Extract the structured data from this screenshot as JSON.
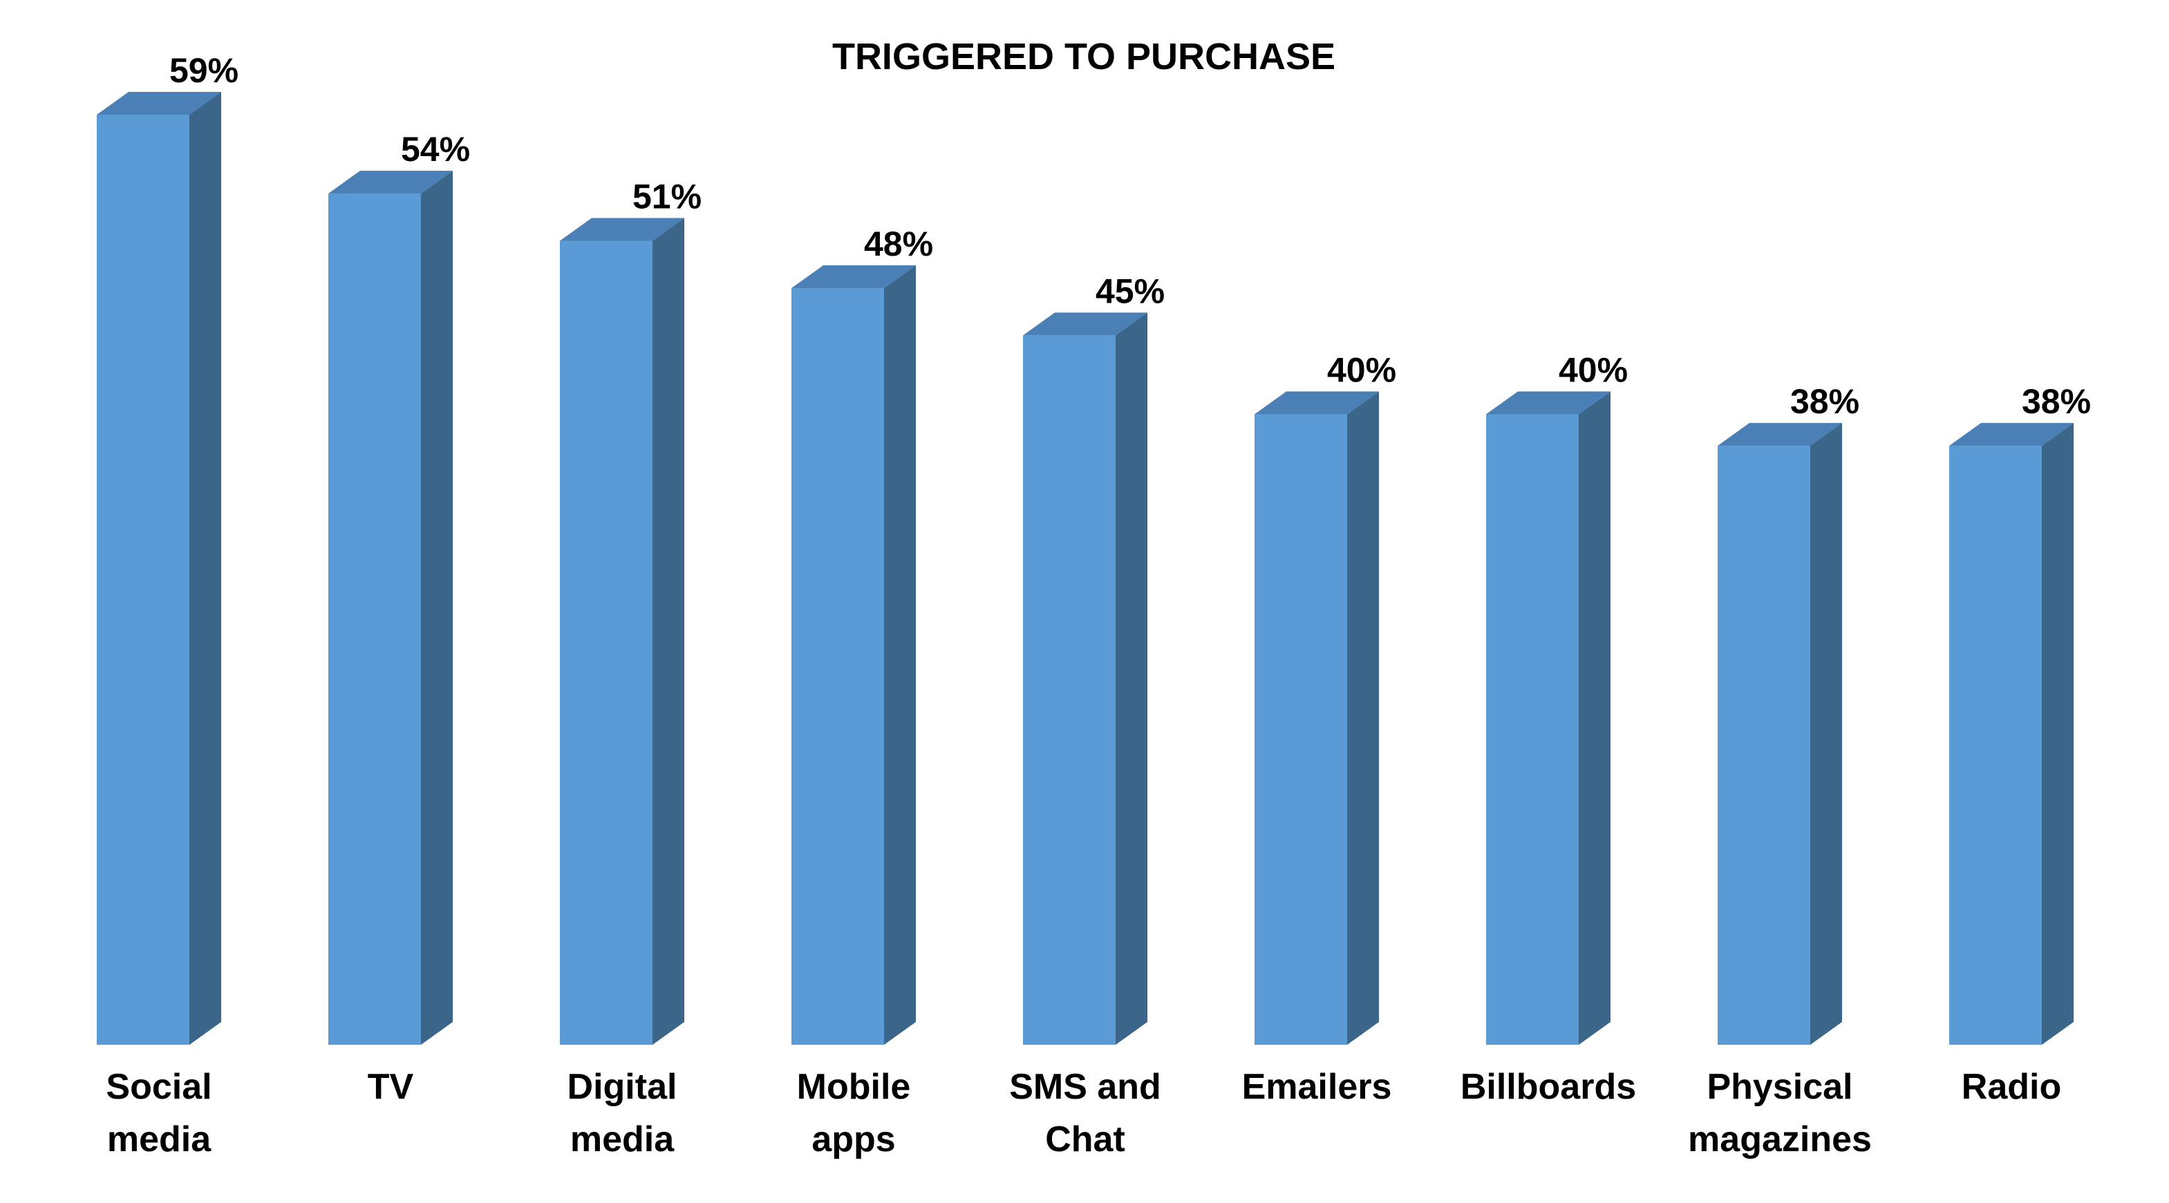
{
  "chart_data": {
    "type": "bar",
    "title": "TRIGGERED TO PURCHASE",
    "categories": [
      [
        "Social",
        "media"
      ],
      [
        "TV"
      ],
      [
        "Digital",
        "media"
      ],
      [
        "Mobile",
        "apps"
      ],
      [
        "SMS and",
        "Chat"
      ],
      [
        "Emailers"
      ],
      [
        "Billboards"
      ],
      [
        "Physical",
        "magazines"
      ],
      [
        "Radio"
      ]
    ],
    "values": [
      59,
      54,
      51,
      48,
      45,
      40,
      40,
      38,
      38
    ],
    "value_labels": [
      "59%",
      "54%",
      "51%",
      "48%",
      "45%",
      "40%",
      "40%",
      "38%",
      "38%"
    ],
    "unit": "%",
    "ylim": [
      0,
      59
    ],
    "grid": false,
    "legend": "none",
    "style": "3d-column",
    "colors": {
      "front": "#5B9BD5",
      "side": "#3B6589",
      "top": "#4A80B5"
    }
  }
}
